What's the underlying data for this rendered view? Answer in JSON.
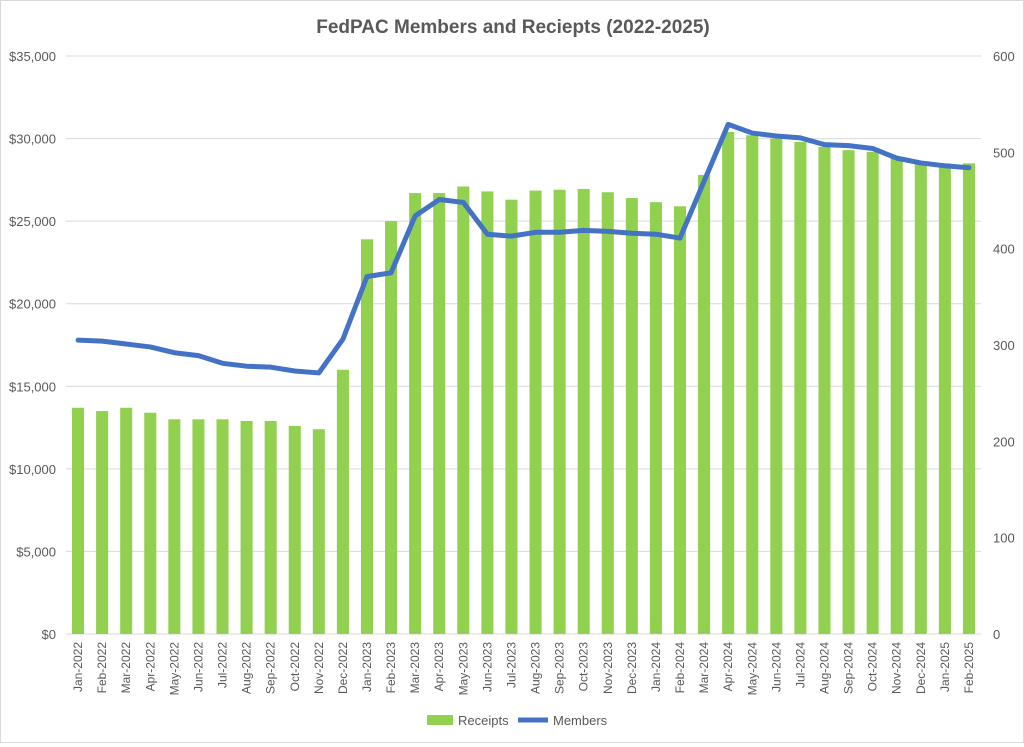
{
  "chart_data": {
    "type": "bar",
    "title": "FedPAC Members and Reciepts (2022-2025)",
    "xlabel": "",
    "ylabel": "",
    "ylim": [
      0,
      35000
    ],
    "y2lim": [
      0,
      600
    ],
    "grid": true,
    "legend": "bottom",
    "y_ticks": [
      "$0",
      "$5,000",
      "$10,000",
      "$15,000",
      "$20,000",
      "$25,000",
      "$30,000",
      "$35,000"
    ],
    "y2_ticks": [
      "0",
      "100",
      "200",
      "300",
      "400",
      "500",
      "600"
    ],
    "categories": [
      "Jan-2022",
      "Feb-2022",
      "Mar-2022",
      "Apr-2022",
      "May-2022",
      "Jun-2022",
      "Jul-2022",
      "Aug-2022",
      "Sep-2022",
      "Oct-2022",
      "Nov-2022",
      "Dec-2022",
      "Jan-2023",
      "Feb-2023",
      "Mar-2023",
      "Apr-2023",
      "May-2023",
      "Jun-2023",
      "Jul-2023",
      "Aug-2023",
      "Sep-2023",
      "Oct-2023",
      "Nov-2023",
      "Dec-2023",
      "Jan-2024",
      "Feb-2024",
      "Mar-2024",
      "Apr-2024",
      "May-2024",
      "Jun-2024",
      "Jul-2024",
      "Aug-2024",
      "Sep-2024",
      "Oct-2024",
      "Nov-2024",
      "Dec-2024",
      "Jan-2025",
      "Feb-2025"
    ],
    "series": [
      {
        "name": "Receipts",
        "type": "bar",
        "axis": "left",
        "color": "#92d050",
        "values": [
          13700,
          13500,
          13700,
          13400,
          13000,
          13000,
          13000,
          12900,
          12900,
          12600,
          12400,
          16000,
          23900,
          25000,
          26700,
          26700,
          27100,
          26800,
          26300,
          26850,
          26900,
          26950,
          26750,
          26400,
          26150,
          25900,
          27800,
          30400,
          30200,
          30000,
          29800,
          29500,
          29300,
          29200,
          28900,
          28600,
          28500,
          28500
        ]
      },
      {
        "name": "Members",
        "type": "line",
        "axis": "right",
        "color": "#4472c4",
        "values": [
          305,
          304,
          301,
          298,
          292,
          289,
          281,
          278,
          277,
          273,
          271,
          306,
          371,
          375,
          434,
          451,
          448,
          415,
          413,
          417,
          417,
          419,
          418,
          416,
          415,
          411,
          470,
          529,
          520,
          517,
          515,
          508,
          507,
          504,
          494,
          489,
          486,
          484
        ]
      }
    ]
  }
}
